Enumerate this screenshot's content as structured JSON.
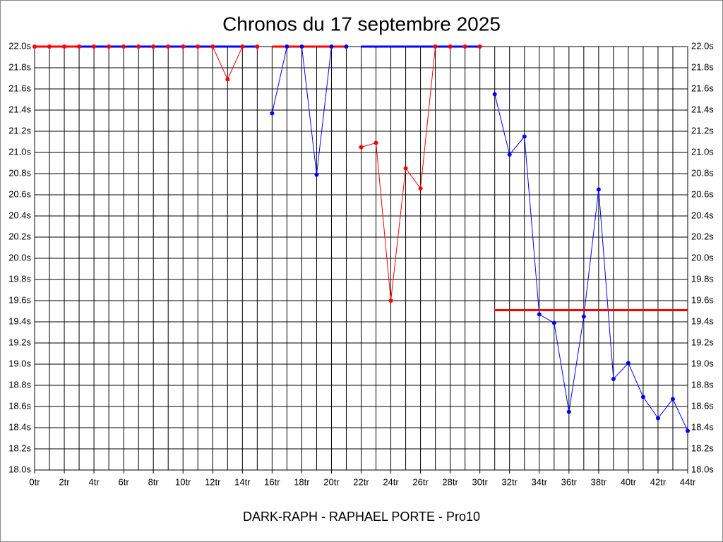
{
  "chart_data": {
    "type": "line",
    "title": "Chronos du 17 septembre 2025",
    "xlabel": "DARK-RAPH - RAPHAEL PORTE - Pro10",
    "x": [
      0,
      1,
      2,
      3,
      4,
      5,
      6,
      7,
      8,
      9,
      10,
      11,
      12,
      13,
      14,
      15,
      16,
      17,
      18,
      19,
      20,
      21,
      22,
      23,
      24,
      25,
      26,
      27,
      28,
      29,
      30,
      31,
      32,
      33,
      34,
      35,
      36,
      37,
      38,
      39,
      40,
      41,
      42,
      43,
      44
    ],
    "xlim": [
      0,
      44
    ],
    "xticks": [
      {
        "value": 0,
        "label": "0tr"
      },
      {
        "value": 2,
        "label": "2tr"
      },
      {
        "value": 4,
        "label": "4tr"
      },
      {
        "value": 6,
        "label": "6tr"
      },
      {
        "value": 8,
        "label": "8tr"
      },
      {
        "value": 10,
        "label": "10tr"
      },
      {
        "value": 12,
        "label": "12tr"
      },
      {
        "value": 14,
        "label": "14tr"
      },
      {
        "value": 16,
        "label": "16tr"
      },
      {
        "value": 18,
        "label": "18tr"
      },
      {
        "value": 20,
        "label": "20tr"
      },
      {
        "value": 22,
        "label": "22tr"
      },
      {
        "value": 24,
        "label": "24tr"
      },
      {
        "value": 26,
        "label": "26tr"
      },
      {
        "value": 28,
        "label": "28tr"
      },
      {
        "value": 30,
        "label": "30tr"
      },
      {
        "value": 32,
        "label": "32tr"
      },
      {
        "value": 34,
        "label": "34tr"
      },
      {
        "value": 36,
        "label": "36tr"
      },
      {
        "value": 38,
        "label": "38tr"
      },
      {
        "value": 40,
        "label": "40tr"
      },
      {
        "value": 42,
        "label": "42tr"
      },
      {
        "value": 44,
        "label": "44tr"
      }
    ],
    "ylim": [
      18.0,
      22.0
    ],
    "yticks": [
      {
        "value": 18.0,
        "label": "18.0s"
      },
      {
        "value": 18.2,
        "label": "18.2s"
      },
      {
        "value": 18.4,
        "label": "18.4s"
      },
      {
        "value": 18.6,
        "label": "18.6s"
      },
      {
        "value": 18.8,
        "label": "18.8s"
      },
      {
        "value": 19.0,
        "label": "19.0s"
      },
      {
        "value": 19.2,
        "label": "19.2s"
      },
      {
        "value": 19.4,
        "label": "19.4s"
      },
      {
        "value": 19.6,
        "label": "19.6s"
      },
      {
        "value": 19.8,
        "label": "19.8s"
      },
      {
        "value": 20.0,
        "label": "20.0s"
      },
      {
        "value": 20.2,
        "label": "20.2s"
      },
      {
        "value": 20.4,
        "label": "20.4s"
      },
      {
        "value": 20.6,
        "label": "20.6s"
      },
      {
        "value": 20.8,
        "label": "20.8s"
      },
      {
        "value": 21.0,
        "label": "21.0s"
      },
      {
        "value": 21.2,
        "label": "21.2s"
      },
      {
        "value": 21.4,
        "label": "21.4s"
      },
      {
        "value": 21.6,
        "label": "21.6s"
      },
      {
        "value": 21.8,
        "label": "21.8s"
      },
      {
        "value": 22.0,
        "label": "22.0s"
      }
    ],
    "grid": true,
    "series": [
      {
        "color": "#ff0000",
        "values": [
          22.0,
          22.0,
          22.0,
          22.0,
          22.0,
          22.0,
          22.0,
          22.0,
          22.0,
          22.0,
          22.0,
          22.0,
          22.0,
          21.69,
          22.0,
          22.0,
          null,
          null,
          null,
          null,
          null,
          null,
          21.05,
          21.09,
          19.6,
          20.85,
          20.66,
          22.0,
          22.0,
          22.0,
          22.0,
          null,
          null,
          null,
          null,
          null,
          null,
          null,
          null,
          null,
          null,
          null,
          null,
          null,
          null
        ]
      },
      {
        "color": "#0000ff",
        "values": [
          null,
          null,
          null,
          null,
          null,
          null,
          null,
          null,
          null,
          null,
          null,
          null,
          null,
          null,
          null,
          null,
          21.37,
          22.0,
          22.0,
          20.79,
          22.0,
          22.0,
          null,
          null,
          null,
          null,
          null,
          null,
          null,
          null,
          null,
          21.55,
          20.98,
          21.15,
          19.47,
          19.39,
          18.55,
          19.45,
          20.65,
          18.86,
          19.01,
          18.69,
          18.49,
          18.67,
          18.37
        ]
      }
    ],
    "reference_lines": [
      {
        "color": "#ff0000",
        "value": 22.0,
        "from": 0,
        "to": 3
      },
      {
        "color": "#0000ff",
        "value": 22.0,
        "from": 3,
        "to": 15
      },
      {
        "color": "#ff0000",
        "value": 22.0,
        "from": 16,
        "to": 21
      },
      {
        "color": "#0000ff",
        "value": 22.0,
        "from": 22,
        "to": 30
      },
      {
        "color": "#ff0000",
        "value": 19.51,
        "from": 31,
        "to": 44
      }
    ]
  }
}
